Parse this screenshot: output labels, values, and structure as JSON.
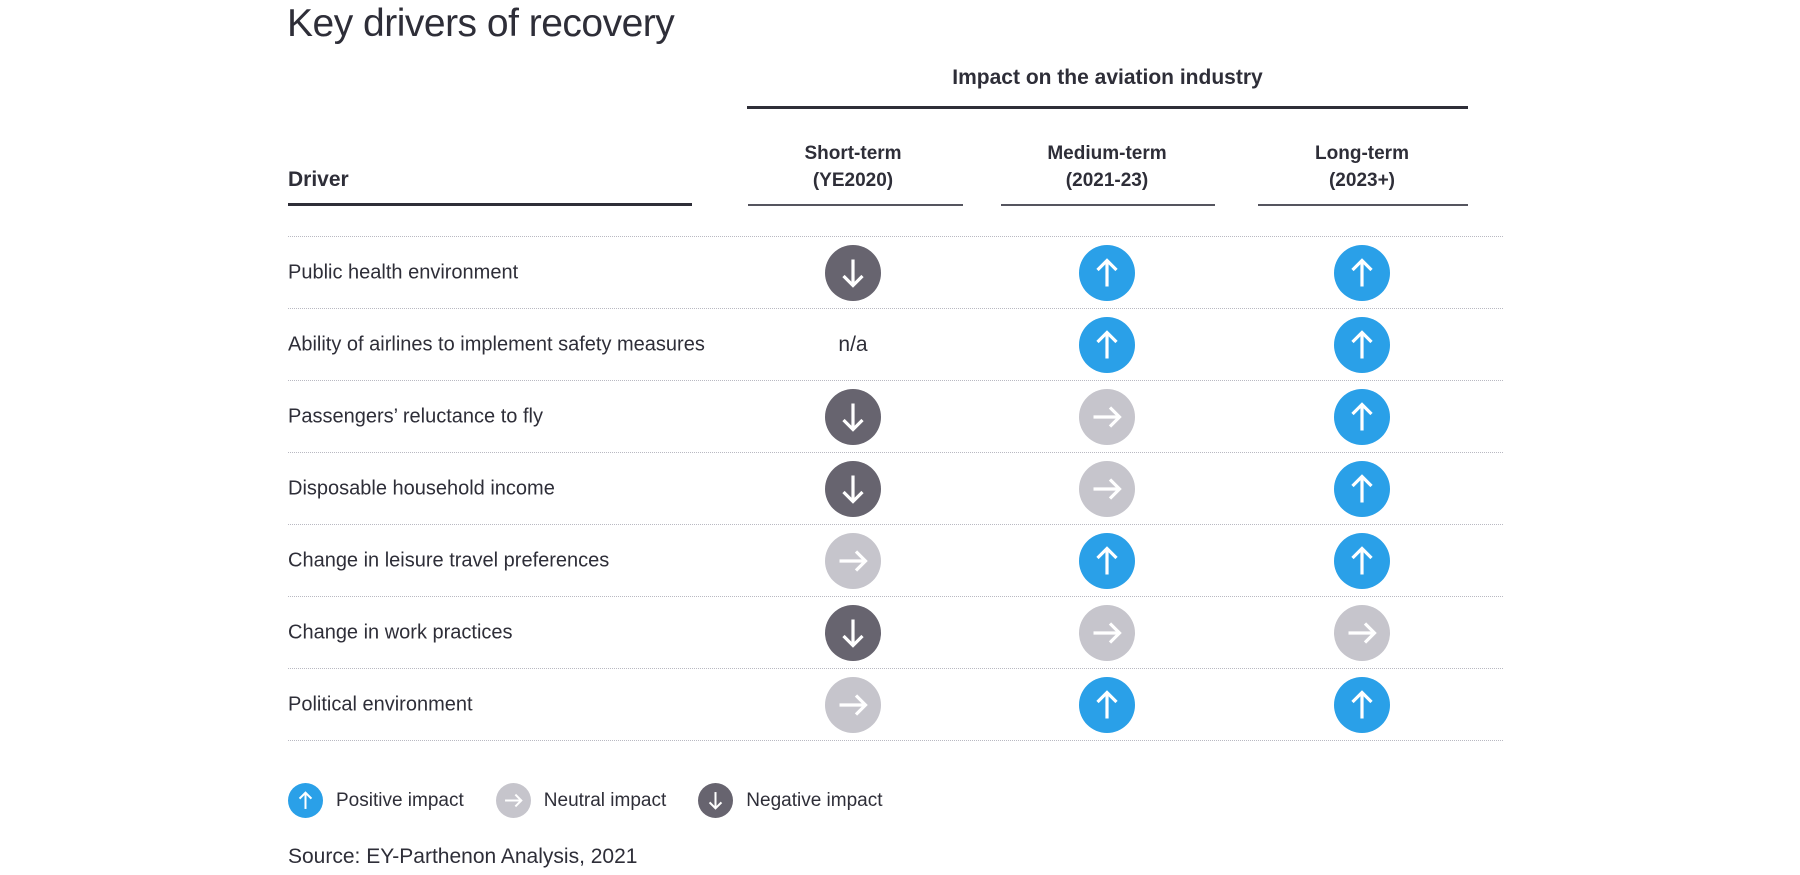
{
  "title": "Key drivers of recovery",
  "chart_data": {
    "type": "table",
    "group_header": "Impact on the aviation industry",
    "driver_header": "Driver",
    "columns": [
      {
        "line1": "Short-term",
        "line2": "(YE2020)"
      },
      {
        "line1": "Medium-term",
        "line2": "(2021-23)"
      },
      {
        "line1": "Long-term",
        "line2": "(2023+)"
      }
    ],
    "rows": [
      {
        "driver": "Public health environment",
        "impacts": [
          "negative",
          "positive",
          "positive"
        ]
      },
      {
        "driver": "Ability of airlines to implement safety measures",
        "impacts": [
          "n/a",
          "positive",
          "positive"
        ]
      },
      {
        "driver": "Passengers’ reluctance to fly",
        "impacts": [
          "negative",
          "neutral",
          "positive"
        ]
      },
      {
        "driver": "Disposable household income",
        "impacts": [
          "negative",
          "neutral",
          "positive"
        ]
      },
      {
        "driver": "Change in leisure travel preferences",
        "impacts": [
          "neutral",
          "positive",
          "positive"
        ]
      },
      {
        "driver": "Change in work practices",
        "impacts": [
          "negative",
          "neutral",
          "neutral"
        ]
      },
      {
        "driver": "Political environment",
        "impacts": [
          "neutral",
          "positive",
          "positive"
        ]
      }
    ]
  },
  "legend": {
    "items": [
      {
        "type": "positive",
        "label": "Positive impact"
      },
      {
        "type": "neutral",
        "label": "Neutral impact"
      },
      {
        "type": "negative",
        "label": "Negative impact"
      }
    ]
  },
  "source": "Source: EY-Parthenon Analysis, 2021",
  "colors": {
    "positive": "#2AA0E8",
    "neutral": "#C6C5CC",
    "negative": "#67646F",
    "text": "#2E2E38"
  }
}
